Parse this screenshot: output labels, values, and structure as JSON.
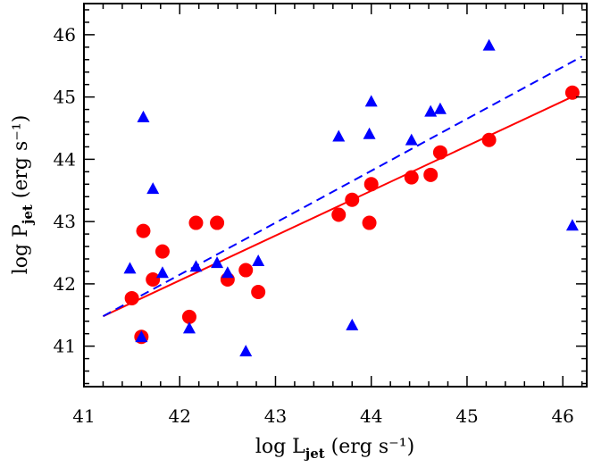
{
  "chart_data": {
    "type": "scatter",
    "title": "",
    "xlabel": {
      "main": "log L",
      "sub": "jet",
      "unit": " (erg s⁻¹)"
    },
    "ylabel": {
      "main": "log P",
      "sub": "jet",
      "unit": " (erg s⁻¹)"
    },
    "xlim": [
      41,
      46.25
    ],
    "ylim": [
      40.35,
      46.5
    ],
    "xticks": [
      41,
      42,
      43,
      44,
      45,
      46
    ],
    "yticks": [
      41,
      42,
      43,
      44,
      45,
      46
    ],
    "grid": false,
    "legend": "none",
    "series": [
      {
        "marker": "circle",
        "color": "#ff0000",
        "points": [
          [
            41.5,
            41.77
          ],
          [
            41.6,
            41.15
          ],
          [
            41.62,
            42.85
          ],
          [
            41.72,
            42.07
          ],
          [
            41.82,
            42.52
          ],
          [
            42.1,
            41.47
          ],
          [
            42.17,
            42.98
          ],
          [
            42.39,
            42.98
          ],
          [
            42.5,
            42.07
          ],
          [
            42.69,
            42.22
          ],
          [
            42.82,
            41.87
          ],
          [
            43.66,
            43.11
          ],
          [
            43.8,
            43.35
          ],
          [
            43.98,
            42.98
          ],
          [
            44.0,
            43.6
          ],
          [
            44.42,
            43.71
          ],
          [
            44.62,
            43.75
          ],
          [
            44.72,
            44.11
          ],
          [
            45.23,
            44.31
          ],
          [
            46.1,
            45.07
          ]
        ]
      },
      {
        "marker": "triangle",
        "color": "#0000ff",
        "points": [
          [
            41.48,
            42.24
          ],
          [
            41.6,
            41.14
          ],
          [
            41.62,
            44.67
          ],
          [
            41.72,
            43.52
          ],
          [
            41.82,
            42.17
          ],
          [
            42.1,
            41.28
          ],
          [
            42.17,
            42.27
          ],
          [
            42.39,
            42.33
          ],
          [
            42.5,
            42.17
          ],
          [
            42.69,
            40.91
          ],
          [
            42.82,
            42.36
          ],
          [
            43.66,
            44.36
          ],
          [
            43.8,
            41.33
          ],
          [
            43.98,
            44.4
          ],
          [
            44.0,
            44.92
          ],
          [
            44.42,
            44.3
          ],
          [
            44.62,
            44.76
          ],
          [
            44.72,
            44.8
          ],
          [
            45.23,
            45.82
          ],
          [
            46.1,
            42.93
          ]
        ]
      }
    ],
    "fits": [
      {
        "style": "solid",
        "color": "#ff0000",
        "x": [
          41.2,
          46.15
        ],
        "y": [
          41.48,
          45.04
        ]
      },
      {
        "style": "dashed",
        "color": "#0000ff",
        "x": [
          41.2,
          46.2
        ],
        "y": [
          41.48,
          45.65
        ]
      }
    ]
  }
}
